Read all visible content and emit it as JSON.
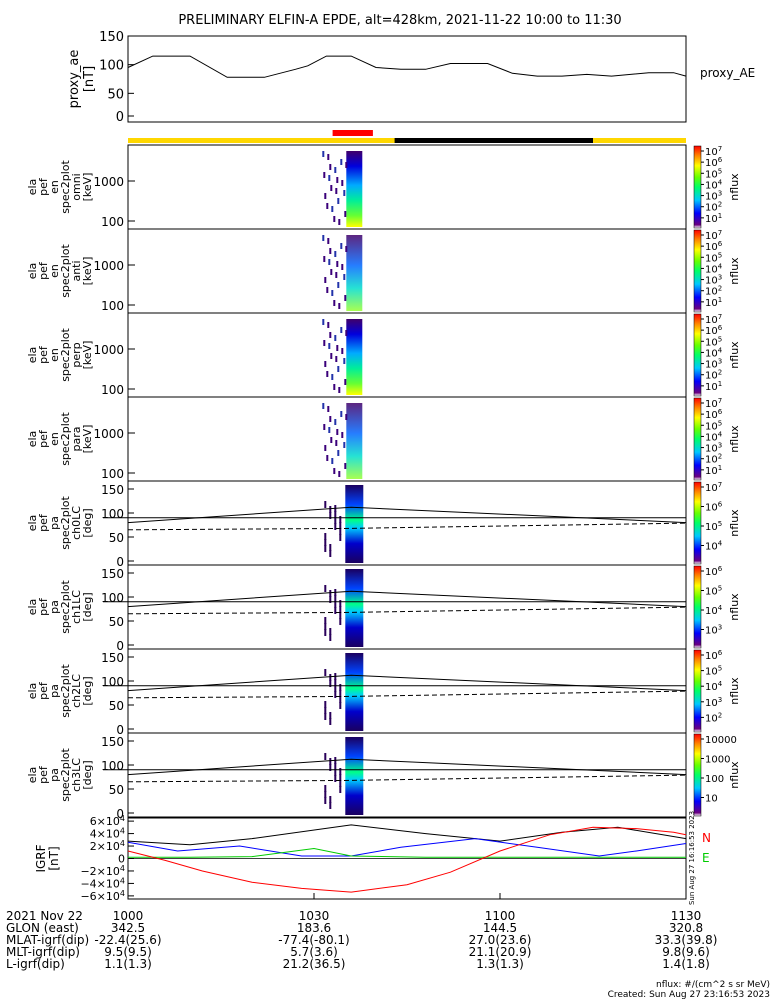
{
  "title": "PRELIMINARY ELFIN-A EPDE, alt=428km, 2021-11-22 10:00 to 11:30",
  "chart_data": {
    "type": "spectrogram-stack",
    "time_range_min": [
      0,
      90
    ],
    "proxy_ae": {
      "ylabel": [
        "proxy_ae",
        "[nT]"
      ],
      "side_label": "proxy_AE",
      "ylim": [
        0,
        150
      ],
      "yticks": [
        "0",
        "50",
        "100",
        "150"
      ],
      "t": [
        0,
        4,
        10,
        16,
        22,
        27,
        29,
        32,
        36,
        40,
        44,
        48,
        52,
        58,
        62,
        66,
        70,
        74,
        78,
        84,
        88,
        90
      ],
      "v": [
        95,
        115,
        115,
        78,
        78,
        92,
        98,
        115,
        115,
        95,
        92,
        92,
        102,
        102,
        85,
        80,
        80,
        83,
        80,
        86,
        86,
        80
      ]
    },
    "status_bar": {
      "base_color": "#ffd700",
      "segments": [
        {
          "start": 33,
          "end": 39.5,
          "color": "#ff0000",
          "row": "top"
        },
        {
          "start": 43,
          "end": 75,
          "color": "#000000",
          "row": "main"
        }
      ]
    },
    "panels": [
      {
        "ylabel": [
          "ela",
          "pef",
          "en",
          "spec2plot",
          "omni",
          "[keV]"
        ],
        "ytick_labels": [
          "1000",
          "100"
        ],
        "zlabel": "nflux",
        "zticks": [
          "10^7",
          "10^6",
          "10^5",
          "10^4",
          "10^3",
          "10^2",
          "10^1"
        ],
        "colorbar_bottom": "10^1"
      },
      {
        "ylabel": [
          "ela",
          "pef",
          "en",
          "spec2plot",
          "anti",
          "[keV]"
        ],
        "ytick_labels": [
          "1000",
          "100"
        ],
        "zlabel": "nflux",
        "zticks": [
          "10^7",
          "10^6",
          "10^5",
          "10^4",
          "10^3",
          "10^2",
          "10^1"
        ],
        "colorbar_bottom": "10^1"
      },
      {
        "ylabel": [
          "ela",
          "pef",
          "en",
          "spec2plot",
          "perp",
          "[keV]"
        ],
        "ytick_labels": [
          "1000",
          "100"
        ],
        "zlabel": "nflux",
        "zticks": [
          "10^7",
          "10^6",
          "10^5",
          "10^4",
          "10^3",
          "10^2",
          "10^1"
        ],
        "colorbar_bottom": "10^1"
      },
      {
        "ylabel": [
          "ela",
          "pef",
          "en",
          "spec2plot",
          "para",
          "[keV]"
        ],
        "ytick_labels": [
          "1000",
          "100"
        ],
        "zlabel": "nflux",
        "zticks": [
          "10^7",
          "10^6",
          "10^5",
          "10^4",
          "10^3",
          "10^2",
          "10^1"
        ],
        "colorbar_bottom": "10^1"
      },
      {
        "ylabel": [
          "ela",
          "pef",
          "pa",
          "spec2plot",
          "ch0LC",
          "[deg]"
        ],
        "ytick_labels": [
          "150",
          "100",
          "50",
          "0"
        ],
        "zlabel": "nflux",
        "zticks": [
          "10^7",
          "10^6",
          "10^5",
          "10^4"
        ]
      },
      {
        "ylabel": [
          "ela",
          "pef",
          "pa",
          "spec2plot",
          "ch1LC",
          "[deg]"
        ],
        "ytick_labels": [
          "150",
          "100",
          "50",
          "0"
        ],
        "zlabel": "nflux",
        "zticks": [
          "10^6",
          "10^5",
          "10^4",
          "10^3"
        ]
      },
      {
        "ylabel": [
          "ela",
          "pef",
          "pa",
          "spec2plot",
          "ch2LC",
          "[deg]"
        ],
        "ytick_labels": [
          "150",
          "100",
          "50",
          "0"
        ],
        "zlabel": "nflux",
        "zticks": [
          "10^6",
          "10^5",
          "10^4",
          "10^3",
          "10^2"
        ]
      },
      {
        "ylabel": [
          "ela",
          "pef",
          "pa",
          "spec2plot",
          "ch3LC",
          "[deg]"
        ],
        "ytick_labels": [
          "150",
          "100",
          "50",
          "0"
        ],
        "zlabel": "nflux",
        "zticks": [
          "10000",
          "1000",
          "100",
          "10"
        ]
      }
    ],
    "losscone": {
      "t": [
        0,
        36,
        90
      ],
      "solid_deg": [
        80,
        112,
        80
      ],
      "dashed_deg": [
        65,
        68,
        79
      ],
      "horizontal_deg": 90
    },
    "igrf": {
      "ylabel": [
        "IGRF",
        "[nT]"
      ],
      "ylim": [
        -65000,
        65000
      ],
      "yticks": [
        "6×10^4",
        "4×10^4",
        "2×10^4",
        "0",
        "−2×10^4",
        "−4×10^4",
        "−6×10^4"
      ],
      "legend": [
        {
          "label": "N",
          "color": "#ff0000"
        },
        {
          "label": "E",
          "color": "#00cc00"
        }
      ],
      "series": [
        {
          "name": "black",
          "color": "#000000",
          "t": [
            0,
            10,
            20,
            36,
            48,
            60,
            70,
            79,
            90
          ],
          "v": [
            28000,
            22000,
            32000,
            54000,
            40000,
            28000,
            42000,
            50000,
            32000
          ]
        },
        {
          "name": "blue",
          "color": "#0000ff",
          "t": [
            0,
            8,
            18,
            28,
            36,
            44,
            56,
            66,
            76,
            82,
            90
          ],
          "v": [
            26000,
            12000,
            20000,
            4000,
            4000,
            18000,
            32000,
            18000,
            4000,
            12000,
            24000
          ]
        },
        {
          "name": "green",
          "color": "#00cc00",
          "t": [
            0,
            10,
            20,
            30,
            36,
            48,
            60,
            75,
            90
          ],
          "v": [
            2000,
            2000,
            3000,
            16000,
            4000,
            2000,
            2000,
            2000,
            2000
          ]
        },
        {
          "name": "red",
          "color": "#ff0000",
          "t": [
            0,
            6,
            12,
            20,
            28,
            36,
            45,
            52,
            60,
            68,
            75,
            82,
            88,
            90
          ],
          "v": [
            12000,
            -3000,
            -20000,
            -38000,
            -48000,
            -54000,
            -42000,
            -22000,
            12000,
            38000,
            50000,
            48000,
            42000,
            38000
          ]
        }
      ]
    },
    "sidebar_stamp": "Sun Aug 27 16:16:53 2023",
    "footer": {
      "rows": [
        {
          "label": "2021 Nov 22",
          "values": [
            "1000",
            "1030",
            "1100",
            "1130"
          ]
        },
        {
          "label": "GLON (east)",
          "values": [
            "342.5",
            "183.6",
            "144.5",
            "320.8"
          ]
        },
        {
          "label": "MLAT-igrf(dip)",
          "values": [
            "-22.4(25.6)",
            "-77.4(-80.1)",
            "27.0(23.6)",
            "33.3(39.8)"
          ]
        },
        {
          "label": "MLT-igrf(dip)",
          "values": [
            "9.5(9.5)",
            "5.7(3.6)",
            "21.1(20.9)",
            "9.8(9.6)"
          ]
        },
        {
          "label": "L-igrf(dip)",
          "values": [
            "1.1(1.3)",
            "21.2(36.5)",
            "1.3(1.3)",
            "1.4(1.8)"
          ]
        }
      ],
      "tick_times": [
        0,
        30,
        60,
        90
      ],
      "units_note": "nflux: #/(cm^2 s sr MeV)",
      "created": "Created: Sun Aug 27 23:16:53 2023"
    }
  }
}
